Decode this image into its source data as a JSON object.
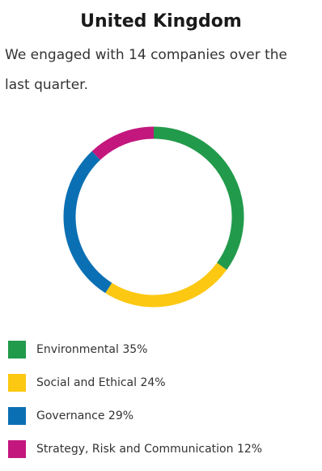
{
  "header": {
    "title": "United Kingdom",
    "intro": "We engaged with 14 companies over the last quarter."
  },
  "chart_data": {
    "type": "pie",
    "categories": [
      "Environmental",
      "Social and Ethical",
      "Governance",
      "Strategy, Risk and Communication"
    ],
    "values": [
      35,
      24,
      29,
      12
    ],
    "colors": [
      "#229a4b",
      "#fcc812",
      "#0b70b3",
      "#c3177e"
    ],
    "legend_labels": [
      "Environmental 35%",
      "Social and Ethical 24%",
      "Governance 29%",
      "Strategy, Risk and Communication 12%"
    ],
    "legend_position": "bottom"
  }
}
